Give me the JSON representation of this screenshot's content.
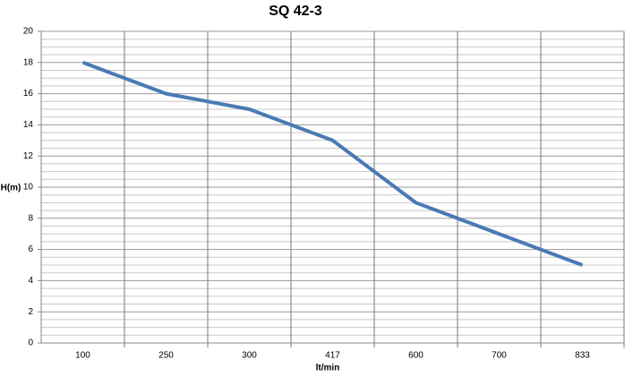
{
  "chart_data": {
    "type": "line",
    "title": "SQ 42-3",
    "x_label": "lt/min",
    "y_label": "H(m)",
    "categories": [
      "100",
      "250",
      "300",
      "417",
      "600",
      "700",
      "833"
    ],
    "series": [
      {
        "name": "SQ 42-3",
        "color": "#4a7ab4",
        "values": [
          18,
          16,
          15,
          13,
          9,
          7,
          5
        ]
      }
    ],
    "ylim": [
      0,
      20
    ],
    "yticks": [
      0,
      2,
      4,
      6,
      8,
      10,
      12,
      14,
      16,
      18,
      20
    ],
    "grid": true,
    "minor_grid": true
  }
}
